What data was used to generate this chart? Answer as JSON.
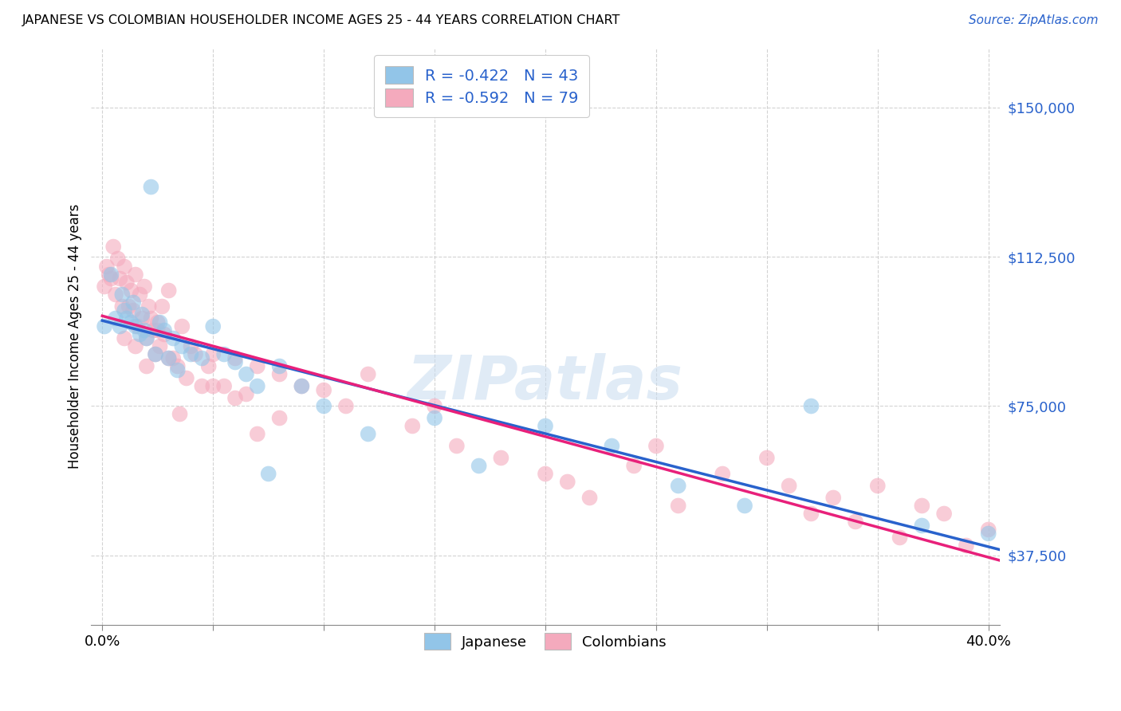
{
  "title": "JAPANESE VS COLOMBIAN HOUSEHOLDER INCOME AGES 25 - 44 YEARS CORRELATION CHART",
  "source": "Source: ZipAtlas.com",
  "ylabel": "Householder Income Ages 25 - 44 years",
  "ytick_labels": [
    "$37,500",
    "$75,000",
    "$112,500",
    "$150,000"
  ],
  "ytick_vals": [
    37500,
    75000,
    112500,
    150000
  ],
  "ylim": [
    20000,
    165000
  ],
  "xlim": [
    -0.005,
    0.405
  ],
  "xtick_vals": [
    0.0,
    0.05,
    0.1,
    0.15,
    0.2,
    0.25,
    0.3,
    0.35,
    0.4
  ],
  "xtick_show_labels": [
    true,
    false,
    false,
    false,
    false,
    false,
    false,
    false,
    true
  ],
  "xtick_labels": [
    "0.0%",
    "",
    "",
    "",
    "",
    "",
    "",
    "",
    "40.0%"
  ],
  "japanese_color": "#92C5E8",
  "colombian_color": "#F4AABD",
  "japanese_line_color": "#2962CC",
  "colombian_line_color": "#E8207A",
  "r_japanese": -0.422,
  "n_japanese": 43,
  "r_colombian": -0.592,
  "n_colombian": 79,
  "watermark": "ZIPatlas",
  "legend_label_japanese": "Japanese",
  "legend_label_colombian": "Colombians",
  "japanese_x": [
    0.001,
    0.004,
    0.006,
    0.008,
    0.009,
    0.01,
    0.011,
    0.013,
    0.014,
    0.015,
    0.017,
    0.018,
    0.019,
    0.02,
    0.022,
    0.024,
    0.026,
    0.028,
    0.03,
    0.032,
    0.034,
    0.036,
    0.04,
    0.045,
    0.05,
    0.055,
    0.06,
    0.065,
    0.07,
    0.075,
    0.08,
    0.09,
    0.1,
    0.12,
    0.15,
    0.17,
    0.2,
    0.23,
    0.26,
    0.29,
    0.32,
    0.37,
    0.4
  ],
  "japanese_y": [
    95000,
    108000,
    97000,
    95000,
    103000,
    99000,
    97000,
    96000,
    101000,
    95000,
    93000,
    98000,
    94000,
    92000,
    130000,
    88000,
    96000,
    94000,
    87000,
    92000,
    84000,
    90000,
    88000,
    87000,
    95000,
    88000,
    86000,
    83000,
    80000,
    58000,
    85000,
    80000,
    75000,
    68000,
    72000,
    60000,
    70000,
    65000,
    55000,
    50000,
    75000,
    45000,
    43000
  ],
  "colombian_x": [
    0.001,
    0.002,
    0.003,
    0.004,
    0.005,
    0.006,
    0.007,
    0.008,
    0.009,
    0.01,
    0.011,
    0.012,
    0.013,
    0.014,
    0.015,
    0.016,
    0.017,
    0.018,
    0.019,
    0.02,
    0.021,
    0.022,
    0.023,
    0.024,
    0.025,
    0.026,
    0.027,
    0.028,
    0.03,
    0.032,
    0.034,
    0.036,
    0.038,
    0.04,
    0.042,
    0.045,
    0.048,
    0.05,
    0.055,
    0.06,
    0.065,
    0.07,
    0.08,
    0.09,
    0.1,
    0.11,
    0.12,
    0.14,
    0.15,
    0.16,
    0.18,
    0.2,
    0.21,
    0.22,
    0.24,
    0.25,
    0.26,
    0.28,
    0.3,
    0.31,
    0.32,
    0.33,
    0.34,
    0.35,
    0.36,
    0.37,
    0.38,
    0.39,
    0.4,
    0.01,
    0.015,
    0.02,
    0.025,
    0.03,
    0.035,
    0.05,
    0.06,
    0.07,
    0.08
  ],
  "colombian_y": [
    105000,
    110000,
    108000,
    107000,
    115000,
    103000,
    112000,
    107000,
    100000,
    110000,
    106000,
    100000,
    104000,
    99000,
    108000,
    95000,
    103000,
    97000,
    105000,
    92000,
    100000,
    97000,
    94000,
    88000,
    96000,
    90000,
    100000,
    93000,
    104000,
    87000,
    85000,
    95000,
    82000,
    90000,
    88000,
    80000,
    85000,
    88000,
    80000,
    87000,
    78000,
    85000,
    83000,
    80000,
    79000,
    75000,
    83000,
    70000,
    75000,
    65000,
    62000,
    58000,
    56000,
    52000,
    60000,
    65000,
    50000,
    58000,
    62000,
    55000,
    48000,
    52000,
    46000,
    55000,
    42000,
    50000,
    48000,
    40000,
    44000,
    92000,
    90000,
    85000,
    94000,
    87000,
    73000,
    80000,
    77000,
    68000,
    72000
  ]
}
